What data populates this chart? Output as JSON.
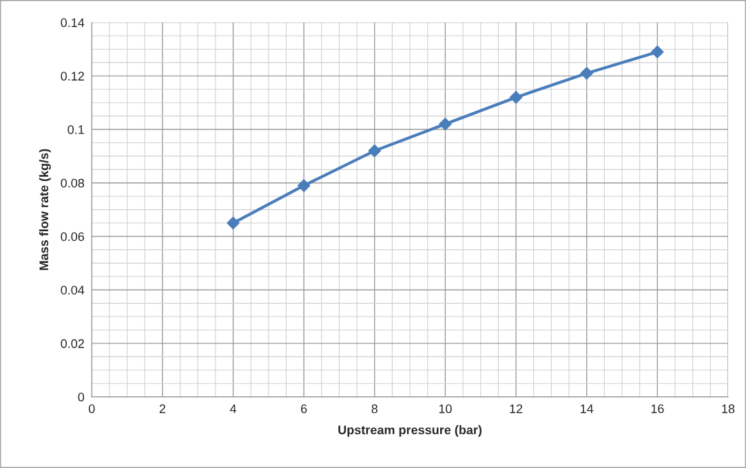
{
  "chart_data": {
    "type": "line",
    "xlabel": "Upstream pressure (bar)",
    "ylabel": "Mass flow rate (kg/s)",
    "x": [
      4,
      6,
      8,
      10,
      12,
      14,
      16
    ],
    "series": [
      {
        "color": "#4a7ebb",
        "values": [
          0.065,
          0.079,
          0.092,
          0.102,
          0.112,
          0.121,
          0.129
        ]
      }
    ],
    "xlim": [
      0,
      18
    ],
    "xticks": [
      0,
      2,
      4,
      6,
      8,
      10,
      12,
      14,
      16,
      18
    ],
    "ylim": [
      0,
      0.14
    ],
    "yticks": [
      0,
      0.02,
      0.04,
      0.06,
      0.08,
      0.1,
      0.12,
      0.14
    ],
    "grid": true,
    "marker": "diamond",
    "line_style": "solid"
  }
}
